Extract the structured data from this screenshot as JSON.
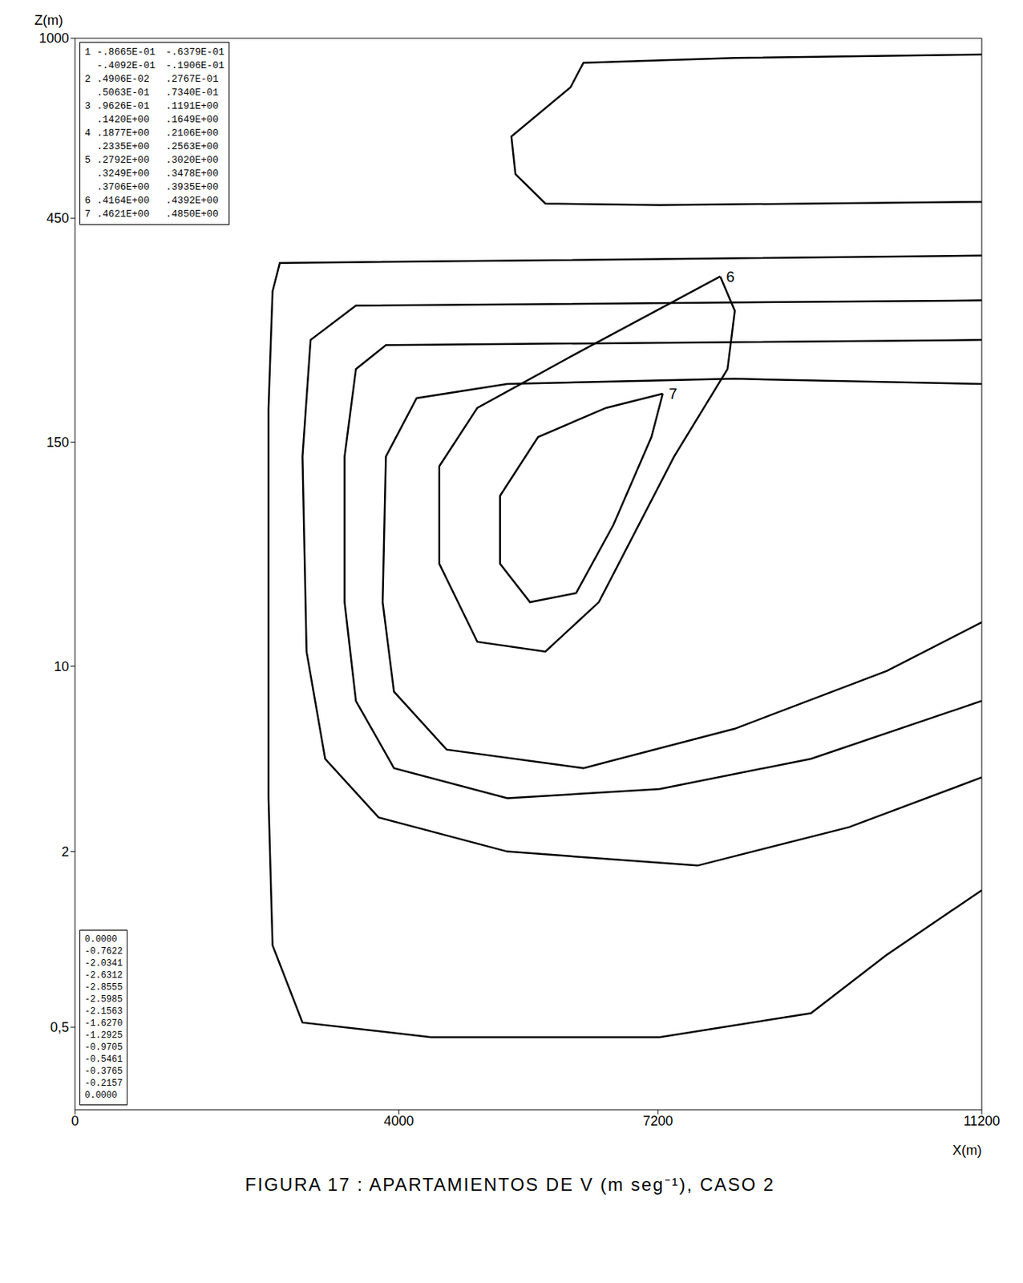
{
  "chart_data": {
    "type": "line",
    "title": "FIGURA 17 : APARTAMIENTOS DE V (m seg⁻¹), CASO 2",
    "x_label": "X(m)",
    "y_label": "Z(m)",
    "xlim": [
      0,
      11200
    ],
    "xticks": [
      0,
      4000,
      7200,
      11200
    ],
    "ylim": [
      0,
      1000
    ],
    "yticks": [
      {
        "value": 0.5,
        "label": "0,5"
      },
      2,
      10,
      150,
      450,
      1000
    ],
    "series": [
      {
        "name": "1",
        "color": "#000000",
        "x": [
          11200,
          8150,
          6280,
          6120,
          5390,
          5440,
          5810,
          7220,
          9090,
          11200
        ],
        "values": [
          950,
          940,
          925,
          850,
          700,
          585,
          495,
          490,
          495,
          500
        ]
      },
      {
        "name": "2",
        "color": "#000000",
        "x": [
          11200,
          2530,
          2440,
          2390,
          2390,
          2390,
          2440,
          2810,
          4400,
          7220,
          9090,
          10030,
          11200
        ],
        "values": [
          400,
          390,
          352,
          195,
          50,
          4.3,
          1.2,
          0.54,
          0.44,
          0.44,
          0.62,
          1.12,
          1.67
        ]
      },
      {
        "name": "3",
        "color": "#000000",
        "x": [
          11200,
          3470,
          2910,
          2810,
          2860,
          3090,
          3750,
          5340,
          7690,
          9560,
          11200
        ],
        "values": [
          340,
          333,
          287,
          141,
          19.1,
          6.0,
          3.47,
          2.0,
          1.88,
          3.05,
          5.2
        ]
      },
      {
        "name": "4",
        "color": "#000000",
        "x": [
          11200,
          3840,
          3470,
          3330,
          3330,
          3470,
          3940,
          5340,
          7220,
          9090,
          11200
        ],
        "values": [
          287,
          280,
          248,
          141,
          50,
          8.5,
          5.6,
          4.3,
          4.7,
          6.0,
          8.5
        ]
      },
      {
        "name": "5",
        "color": "#000000",
        "x": [
          11200,
          8150,
          5340,
          4220,
          3840,
          3800,
          3940,
          4590,
          6280,
          8150,
          10030,
          11200
        ],
        "values": [
          228,
          235,
          228,
          209,
          141,
          50,
          8.9,
          6.4,
          5.6,
          7.3,
          9.8,
          37.4
        ]
      },
      {
        "name": "6",
        "color": "#000000",
        "x": [
          7970,
          8150,
          8060,
          7400,
          6470,
          5810,
          4970,
          4500,
          4500,
          4970,
          6280,
          7400,
          7970
        ],
        "values": [
          372,
          326,
          248,
          141,
          50,
          19.1,
          25.2,
          74,
          135,
          196,
          274,
          339,
          372
        ]
      },
      {
        "name": "7",
        "color": "#000000",
        "x": [
          7260,
          7120,
          6650,
          6190,
          5620,
          5250,
          5250,
          5720,
          6560,
          7260
        ],
        "values": [
          215,
          157,
          98.3,
          55.7,
          50,
          74,
          116.5,
          157,
          196,
          215
        ]
      }
    ],
    "marker": "none",
    "line_style": "solid",
    "bands": [
      {
        "level": "1",
        "lo": "-.8665E-01",
        "hi": "-.6379E-01"
      },
      {
        "lo": "-.4092E-01",
        "hi": "-.1906E-01"
      },
      {
        "level": "2",
        "lo": ".4906E-02",
        "hi": ".2767E-01"
      },
      {
        "lo": ".5063E-01",
        "hi": ".7340E-01"
      },
      {
        "level": "3",
        "lo": ".9626E-01",
        "hi": ".1191E+00"
      },
      {
        "lo": ".1420E+00",
        "hi": ".1649E+00"
      },
      {
        "level": "4",
        "lo": ".1877E+00",
        "hi": ".2106E+00"
      },
      {
        "lo": ".2335E+00",
        "hi": ".2563E+00"
      },
      {
        "level": "5",
        "lo": ".2792E+00",
        "hi": ".3020E+00"
      },
      {
        "lo": ".3249E+00",
        "hi": ".3478E+00"
      },
      {
        "lo": ".3706E+00",
        "hi": ".3935E+00"
      },
      {
        "level": "6",
        "lo": ".4164E+00",
        "hi": ".4392E+00"
      },
      {
        "level": "7",
        "lo": ".4621E+00",
        "hi": ".4850E+00"
      }
    ],
    "profile": [
      "0.0000",
      "-0.7622",
      "-2.0341",
      "-2.6312",
      "-2.8555",
      "-2.5985",
      "-2.1563",
      "-1.6270",
      "-1.2925",
      "-0.9705",
      "-0.5461",
      "-0.3765",
      "-0.2157",
      "0.0000"
    ]
  }
}
